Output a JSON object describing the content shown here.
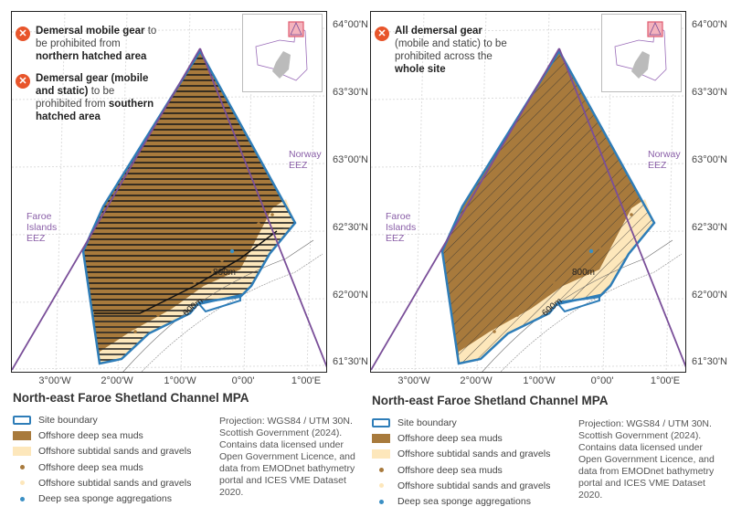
{
  "panels": [
    {
      "notes": [
        {
          "icon": "close-circle-icon",
          "bold1": "Demersal mobile gear",
          "text1": " to be prohibited from ",
          "bold2": "northern hatched area",
          "text2": ""
        },
        {
          "icon": "close-circle-icon",
          "bold1": "Demersal gear (mobile and static)",
          "text1": " to be prohibited from ",
          "bold2": "southern hatched area",
          "text2": ""
        }
      ],
      "hatch": "horizontal"
    },
    {
      "notes": [
        {
          "icon": "close-circle-icon",
          "bold1": "All demersal gear",
          "text1": " (mobile and static) to be prohibited across the ",
          "bold2": "whole site",
          "text2": ""
        }
      ],
      "hatch": "diagonal"
    }
  ],
  "map": {
    "eez_labels": {
      "faroe": "Faroe Islands EEZ",
      "norway": "Norway EEZ"
    },
    "depth_labels": [
      "800m",
      "600m"
    ],
    "lat_ticks": [
      "64°00'N",
      "63°30'N",
      "63°00'N",
      "62°30'N",
      "62°00'N",
      "61°30'N"
    ],
    "lon_ticks": [
      "3°00'W",
      "2°00'W",
      "1°00'W",
      "0°00'",
      "1°00'E"
    ]
  },
  "legend": {
    "title": "North-east Faroe Shetland Channel MPA",
    "items": [
      {
        "label": "Site boundary",
        "type": "boundary",
        "color": "#2e7db8"
      },
      {
        "label": "Offshore deep sea muds",
        "type": "fill",
        "color": "#a87a3c"
      },
      {
        "label": "Offshore subtidal sands and gravels",
        "type": "fill",
        "color": "#fde7bb"
      },
      {
        "label": "Offshore deep sea muds",
        "type": "point",
        "color": "#a87a3c"
      },
      {
        "label": "Offshore subtidal sands and gravels",
        "type": "point",
        "color": "#fde7bb"
      },
      {
        "label": "Deep sea sponge aggregations",
        "type": "point",
        "color": "#3a8fc4"
      }
    ],
    "credit": "Projection: WGS84 / UTM 30N. Scottish Government (2024). Contains data licensed under Open Government Licence, and data from EMODnet bathymetry portal and ICES VME Dataset 2020."
  },
  "colors": {
    "eez": "#8a5fa8",
    "boundary": "#2e7db8",
    "muds": "#a87a3c",
    "sands": "#fde7bb",
    "sponge": "#3a8fc4",
    "prohibit": "#e8552b",
    "inset_highlight": "#e05a6e"
  }
}
